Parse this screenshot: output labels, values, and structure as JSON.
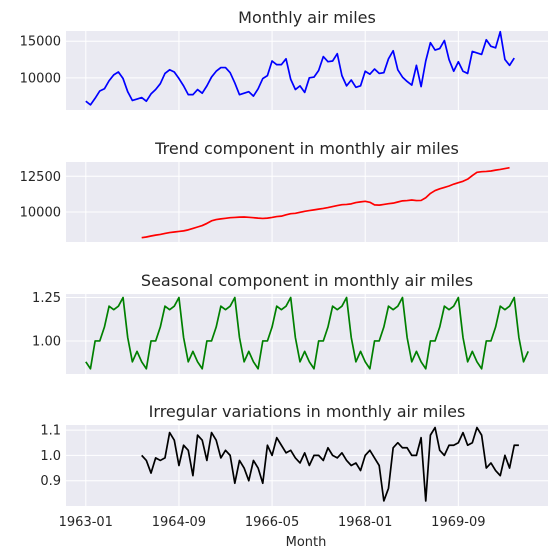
{
  "figure": {
    "xlabel": "Month",
    "x_ticks": [
      "1963-01",
      "1964-09",
      "1966-05",
      "1968-01",
      "1969-09"
    ],
    "colors": {
      "panel_bg": "#eaeaf2",
      "grid": "#ffffff"
    }
  },
  "chart_data": [
    {
      "type": "line",
      "title": "Monthly air miles",
      "color": "#0000ff",
      "ylim": [
        5600,
        16400
      ],
      "yticks": [
        10000,
        15000
      ],
      "ytick_labels": [
        "10000",
        "15000"
      ],
      "x_start": "1963-01",
      "series": [
        {
          "values": [
            6800,
            6300,
            7200,
            8200,
            8500,
            9600,
            10400,
            10800,
            9900,
            8100,
            6900,
            7100,
            7300,
            6800,
            7800,
            8400,
            9200,
            10600,
            11100,
            10800,
            9900,
            8900,
            7700,
            7700,
            8400,
            7900,
            8900,
            10100,
            10900,
            11400,
            11400,
            10700,
            9300,
            7700,
            7900,
            8100,
            7500,
            8500,
            9900,
            10300,
            12300,
            11800,
            11800,
            12600,
            9800,
            8400,
            8900,
            8000,
            10000,
            10100,
            11000,
            12900,
            12200,
            12300,
            13300,
            10300,
            8900,
            9700,
            8700,
            8900,
            10900,
            10500,
            11200,
            10600,
            10700,
            12600,
            13700,
            11100,
            10100,
            9500,
            9000,
            11700,
            8800,
            12300,
            14800,
            13800,
            14000,
            15100,
            12500,
            10900,
            12200,
            10900,
            10600,
            13600,
            13400,
            13200,
            15200,
            14300,
            14100,
            16300,
            12500,
            11700,
            12700
          ]
        }
      ]
    },
    {
      "type": "line",
      "title": "Trend component in monthly air miles",
      "color": "#ff0000",
      "ylim": [
        7900,
        13500
      ],
      "yticks": [
        10000,
        12500
      ],
      "ytick_labels": [
        "10000",
        "12500"
      ],
      "x_start": "1963-07",
      "series": [
        {
          "values": [
            null,
            null,
            null,
            null,
            null,
            null,
            8200,
            8250,
            8320,
            8380,
            8430,
            8500,
            8560,
            8600,
            8640,
            8680,
            8750,
            8850,
            8950,
            9050,
            9200,
            9380,
            9470,
            9520,
            9560,
            9600,
            9620,
            9640,
            9650,
            9630,
            9600,
            9570,
            9550,
            9570,
            9620,
            9680,
            9710,
            9800,
            9880,
            9910,
            9980,
            10050,
            10100,
            10150,
            10200,
            10250,
            10310,
            10380,
            10450,
            10510,
            10530,
            10570,
            10660,
            10710,
            10750,
            10680,
            10500,
            10480,
            10530,
            10580,
            10620,
            10700,
            10780,
            10800,
            10840,
            10800,
            10810,
            11000,
            11300,
            11500,
            11620,
            11720,
            11820,
            11950,
            12050,
            12150,
            12300,
            12550,
            12780,
            12820,
            12840,
            12870,
            12930,
            12980,
            13040,
            13100,
            null,
            null,
            null,
            null,
            null,
            null
          ]
        }
      ]
    },
    {
      "type": "line",
      "title": "Seasonal component in monthly air miles",
      "color": "#008000",
      "ylim": [
        0.81,
        1.27
      ],
      "yticks": [
        1.0,
        1.25
      ],
      "ytick_labels": [
        "1.00",
        "1.25"
      ],
      "x_start": "1963-01",
      "series": [
        {
          "values": [
            0.88,
            0.84,
            1.0,
            1.0,
            1.08,
            1.2,
            1.18,
            1.2,
            1.25,
            1.02,
            0.88,
            0.94,
            0.88,
            0.84,
            1.0,
            1.0,
            1.08,
            1.2,
            1.18,
            1.2,
            1.25,
            1.02,
            0.88,
            0.94,
            0.88,
            0.84,
            1.0,
            1.0,
            1.08,
            1.2,
            1.18,
            1.2,
            1.25,
            1.02,
            0.88,
            0.94,
            0.88,
            0.84,
            1.0,
            1.0,
            1.08,
            1.2,
            1.18,
            1.2,
            1.25,
            1.02,
            0.88,
            0.94,
            0.88,
            0.84,
            1.0,
            1.0,
            1.08,
            1.2,
            1.18,
            1.2,
            1.25,
            1.02,
            0.88,
            0.94,
            0.88,
            0.84,
            1.0,
            1.0,
            1.08,
            1.2,
            1.18,
            1.2,
            1.25,
            1.02,
            0.88,
            0.94,
            0.88,
            0.84,
            1.0,
            1.0,
            1.08,
            1.2,
            1.18,
            1.2,
            1.25,
            1.02,
            0.88,
            0.94,
            0.88,
            0.84,
            1.0,
            1.0,
            1.08,
            1.2,
            1.18,
            1.2,
            1.25,
            1.02,
            0.88,
            0.94
          ]
        }
      ]
    },
    {
      "type": "line",
      "title": "Irregular variations in monthly air miles",
      "color": "#000000",
      "ylim": [
        0.8,
        1.12
      ],
      "yticks": [
        0.9,
        1.0,
        1.1
      ],
      "ytick_labels": [
        "0.9",
        "1.0",
        "1.1"
      ],
      "x_start": "1963-07",
      "series": [
        {
          "values": [
            null,
            null,
            null,
            null,
            null,
            null,
            1.0,
            0.98,
            0.93,
            0.99,
            0.98,
            0.99,
            1.09,
            1.06,
            0.96,
            1.04,
            1.02,
            0.92,
            1.08,
            1.06,
            0.98,
            1.09,
            1.06,
            0.99,
            1.02,
            1.0,
            0.89,
            0.98,
            0.95,
            0.9,
            0.98,
            0.95,
            0.89,
            1.04,
            1.0,
            1.07,
            1.04,
            1.01,
            1.02,
            0.99,
            0.97,
            1.01,
            0.96,
            1.0,
            1.0,
            0.98,
            1.03,
            1.0,
            0.99,
            1.01,
            0.98,
            0.96,
            0.97,
            0.94,
            1.0,
            1.02,
            0.99,
            0.96,
            0.82,
            0.87,
            1.03,
            1.05,
            1.03,
            1.03,
            1.0,
            1.0,
            1.07,
            0.82,
            1.08,
            1.11,
            1.02,
            1.0,
            1.04,
            1.04,
            1.05,
            1.09,
            1.04,
            1.05,
            1.11,
            1.08,
            0.95,
            0.97,
            0.94,
            0.92,
            1.0,
            0.95,
            1.04,
            1.04,
            null,
            null,
            null,
            null,
            null,
            null
          ]
        }
      ]
    }
  ]
}
